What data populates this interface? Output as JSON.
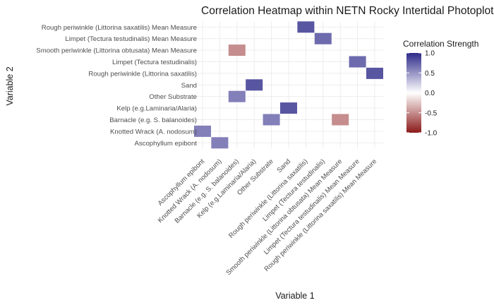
{
  "chart_data": {
    "type": "heatmap",
    "title": "Correlation Heatmap within NETN Rocky Intertidal Photoplots",
    "xlabel": "Variable 1",
    "ylabel": "Variable 2",
    "x_categories": [
      "Ascophyllum epibont",
      "Knotted Wrack (A. nodosum)",
      "Barnacle (e.g. S. balanoides)",
      "Kelp (e.g.Laminaria/Alaria)",
      "Other Substrate",
      "Sand",
      "Rough periwinkle (Littorina saxatilis)",
      "Limpet (Tectura testudinalis)",
      "Smooth periwinkle (Littorina obtusata) Mean Measure",
      "Limpet (Tectura testudinalis) Mean Measure",
      "Rough periwinkle (Littorina saxatilis) Mean Measure"
    ],
    "y_categories": [
      "Ascophyllum epibont",
      "Knotted Wrack (A. nodosum)",
      "Barnacle (e.g. S. balanoides)",
      "Kelp (e.g.Laminaria/Alaria)",
      "Other Substrate",
      "Sand",
      "Rough periwinkle (Littorina saxatilis)",
      "Limpet (Tectura testudinalis)",
      "Smooth periwinkle (Littorina obtusata) Mean Measure",
      "Limpet (Tectura testudinalis) Mean Measure",
      "Rough periwinkle (Littorina saxatilis) Mean Measure"
    ],
    "cells": [
      {
        "x": "Ascophyllum epibont",
        "y": "Knotted Wrack (A. nodosum)",
        "value": 0.6
      },
      {
        "x": "Knotted Wrack (A. nodosum)",
        "y": "Ascophyllum epibont",
        "value": 0.6
      },
      {
        "x": "Barnacle (e.g. S. balanoides)",
        "y": "Other Substrate",
        "value": 0.6
      },
      {
        "x": "Barnacle (e.g. S. balanoides)",
        "y": "Smooth periwinkle (Littorina obtusata) Mean Measure",
        "value": -0.5
      },
      {
        "x": "Kelp (e.g.Laminaria/Alaria)",
        "y": "Sand",
        "value": 0.8
      },
      {
        "x": "Other Substrate",
        "y": "Barnacle (e.g. S. balanoides)",
        "value": 0.6
      },
      {
        "x": "Sand",
        "y": "Kelp (e.g.Laminaria/Alaria)",
        "value": 0.8
      },
      {
        "x": "Rough periwinkle (Littorina saxatilis)",
        "y": "Rough periwinkle (Littorina saxatilis) Mean Measure",
        "value": 0.8
      },
      {
        "x": "Limpet (Tectura testudinalis)",
        "y": "Limpet (Tectura testudinalis) Mean Measure",
        "value": 0.7
      },
      {
        "x": "Smooth periwinkle (Littorina obtusata) Mean Measure",
        "y": "Barnacle (e.g. S. balanoides)",
        "value": -0.5
      },
      {
        "x": "Limpet (Tectura testudinalis) Mean Measure",
        "y": "Limpet (Tectura testudinalis)",
        "value": 0.7
      },
      {
        "x": "Rough periwinkle (Littorina saxatilis) Mean Measure",
        "y": "Rough periwinkle (Littorina saxatilis)",
        "value": 0.8
      }
    ],
    "legend": {
      "title": "Correlation Strength",
      "position": "right",
      "range": [
        -1,
        1
      ],
      "ticks": [
        "1.0",
        "0.5",
        "0.0",
        "-0.5",
        "-1.0"
      ],
      "colors": {
        "low": "#8b1a1a",
        "mid": "#ffffff",
        "high": "#2e2a8a"
      }
    },
    "grid": true
  }
}
